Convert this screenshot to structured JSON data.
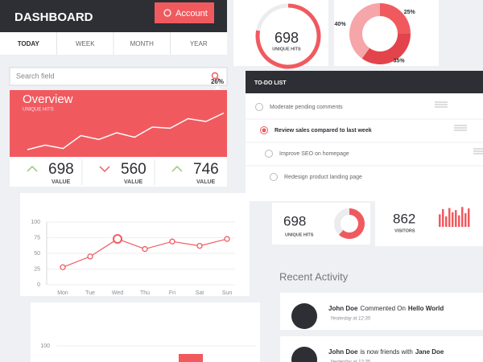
{
  "header": {
    "title": "DASHBOARD",
    "button": "Account"
  },
  "tabs": {
    "items": [
      "TODAY",
      "WEEK",
      "MONTH",
      "YEAR"
    ],
    "active": 0
  },
  "search": {
    "placeholder": "Search field"
  },
  "overview": {
    "title": "Overview",
    "subtitle": "UNIQUE HITS",
    "badge": "26%",
    "values": [
      20,
      28,
      22,
      45,
      38,
      50,
      42,
      60,
      58,
      75,
      70,
      85
    ],
    "ylim": [
      0,
      100
    ]
  },
  "stats": [
    {
      "value": "698",
      "label": "VALUE",
      "trend": "up"
    },
    {
      "value": "560",
      "label": "VALUE",
      "trend": "down"
    },
    {
      "value": "746",
      "label": "VALUE",
      "trend": "up"
    }
  ],
  "chart_data": {
    "type": "line",
    "categories": [
      "Mon",
      "Tue",
      "Wed",
      "Thu",
      "Fri",
      "Sat",
      "Sun"
    ],
    "values": [
      28,
      45,
      73,
      57,
      69,
      62,
      73
    ],
    "ylim": [
      0,
      100
    ],
    "yticks": [
      0,
      25,
      50,
      75,
      100
    ],
    "color": "#f05a5f",
    "grid": true,
    "highlight": 2
  },
  "bottom_chart": {
    "yticks": [
      100
    ]
  },
  "hits_card": {
    "value": "698",
    "label": "UNIQUE HITS",
    "progress": 78,
    "max": 100
  },
  "donut": {
    "values": [
      25,
      35,
      40
    ],
    "labels": [
      "25%",
      "35%",
      "40%"
    ],
    "colors": [
      "#f05a5f",
      "#e3434a",
      "#f6a5a8"
    ]
  },
  "todo": {
    "title": "TO-DO LIST",
    "items": [
      {
        "text": "Moderate pending comments",
        "checked": false
      },
      {
        "text": "Review sales compared to last week",
        "checked": true
      },
      {
        "text": "Improve SEO on homepage",
        "checked": false
      },
      {
        "text": "Redesign product landing page",
        "checked": false
      }
    ]
  },
  "small_hits": {
    "value": "698",
    "label": "UNIQUE HITS",
    "progress": 62,
    "max": 100
  },
  "visitors": {
    "value": "862",
    "label": "VISITORS",
    "values": [
      60,
      85,
      50,
      90,
      70,
      80,
      55,
      95,
      65,
      88
    ],
    "ylim": [
      0,
      100
    ]
  },
  "activity": {
    "title": "Recent Activity",
    "items": [
      {
        "name": "John Doe",
        "action": "Commented On",
        "target": "Hello World",
        "time": "Yesterday at 12:35"
      },
      {
        "name": "John Doe",
        "action": "is now friends with",
        "target": "Jane Doe",
        "time": "Yesterday at 12:35"
      }
    ]
  }
}
